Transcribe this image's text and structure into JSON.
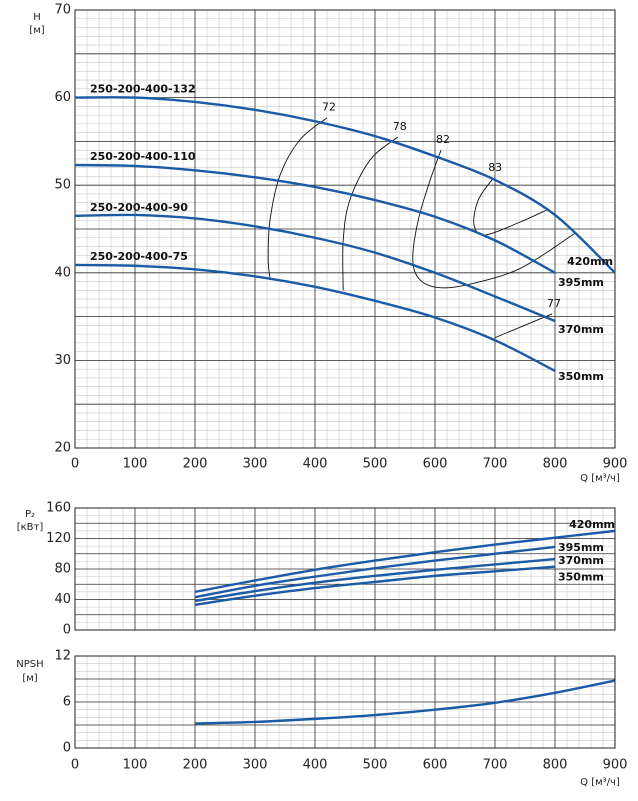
{
  "chart_data": [
    {
      "type": "line",
      "ylabel": [
        "H",
        "[м]"
      ],
      "xlabel": "Q [м³/ч]",
      "x": [
        0,
        100,
        200,
        300,
        400,
        500,
        600,
        700,
        800,
        900
      ],
      "xlim": [
        0,
        900
      ],
      "xticks": [
        0,
        100,
        200,
        300,
        400,
        500,
        600,
        700,
        800,
        900
      ],
      "ylim": [
        20,
        70
      ],
      "yticks": [
        20,
        30,
        40,
        50,
        60,
        70
      ],
      "ygrid": [
        25,
        35,
        45,
        55,
        65
      ],
      "grid": true,
      "color": "#1a5aa6",
      "series": [
        {
          "name": "250-200-400-132",
          "label": "420mm",
          "values": [
            60,
            60,
            59.5,
            58.6,
            57.3,
            55.6,
            53.3,
            50.6,
            46.6,
            40
          ]
        },
        {
          "name": "250-200-400-110",
          "label": "395mm",
          "values": [
            52.3,
            52.2,
            51.7,
            50.9,
            49.8,
            48.3,
            46.4,
            43.7,
            40,
            null
          ]
        },
        {
          "name": "250-200-400-90",
          "label": "370mm",
          "values": [
            46.5,
            46.6,
            46.2,
            45.3,
            44,
            42.3,
            40,
            37.3,
            34.5,
            null
          ]
        },
        {
          "name": "250-200-400-75",
          "label": "350mm",
          "values": [
            40.9,
            40.8,
            40.4,
            39.6,
            38.4,
            36.8,
            34.9,
            32.3,
            28.8,
            null
          ]
        }
      ],
      "contours": [
        {
          "name": "72",
          "x": [
            420,
            375,
            342,
            325,
            322,
            325
          ],
          "y": [
            57.7,
            55.2,
            51.2,
            46,
            41.5,
            39.4
          ]
        },
        {
          "name": "78",
          "x": [
            538,
            492,
            458,
            447,
            447
          ],
          "y": [
            55.5,
            52.9,
            48.3,
            43.7,
            38
          ]
        },
        {
          "name": "82",
          "x": [
            610,
            592,
            572,
            563,
            575,
            608,
            658,
            742,
            833
          ],
          "y": [
            54,
            50.6,
            46,
            41.5,
            39.2,
            38.3,
            38.7,
            40.5,
            44.5
          ]
        },
        {
          "name": "83",
          "x": [
            697,
            672,
            665,
            683,
            742,
            787
          ],
          "y": [
            50.8,
            48.3,
            45.5,
            44.3,
            45.8,
            47.2
          ]
        },
        {
          "name": "77",
          "x": [
            795,
            700
          ],
          "y": [
            35.3,
            32.6
          ]
        }
      ]
    },
    {
      "type": "line",
      "ylabel": [
        "P₂",
        "[кВт]"
      ],
      "x": [
        200,
        300,
        400,
        500,
        600,
        700,
        800,
        900
      ],
      "xlim": [
        0,
        900
      ],
      "xticks": [
        0,
        100,
        200,
        300,
        400,
        500,
        600,
        700,
        800,
        900
      ],
      "show_xtick_labels": false,
      "ylim": [
        0,
        160
      ],
      "yticks": [
        0,
        40,
        80,
        120,
        160
      ],
      "ygrid": [
        20,
        60,
        100,
        140
      ],
      "grid": true,
      "color": "#1a5aa6",
      "series": [
        {
          "name": "420mm",
          "values": [
            50,
            65,
            79,
            91,
            102,
            112,
            121,
            130
          ]
        },
        {
          "name": "395mm",
          "values": [
            43,
            58,
            70,
            81,
            91,
            100,
            109,
            null
          ]
        },
        {
          "name": "370mm",
          "values": [
            38,
            51,
            62,
            71,
            79,
            86,
            93,
            null
          ]
        },
        {
          "name": "350mm",
          "values": [
            33,
            45,
            55,
            63,
            71,
            77,
            83,
            null
          ]
        }
      ]
    },
    {
      "type": "line",
      "ylabel": [
        "NPSH",
        "[м]"
      ],
      "xlabel": "Q [м³/ч]",
      "x": [
        200,
        300,
        400,
        500,
        600,
        700,
        800,
        900
      ],
      "xlim": [
        0,
        900
      ],
      "xticks": [
        0,
        100,
        200,
        300,
        400,
        500,
        600,
        700,
        800,
        900
      ],
      "ylim": [
        0,
        12
      ],
      "yticks": [
        0,
        6,
        12
      ],
      "ygrid": [
        3,
        9
      ],
      "grid": true,
      "color": "#1a5aa6",
      "series": [
        {
          "values": [
            3.2,
            3.4,
            3.8,
            4.3,
            5.0,
            5.9,
            7.2,
            8.8
          ]
        }
      ]
    }
  ]
}
